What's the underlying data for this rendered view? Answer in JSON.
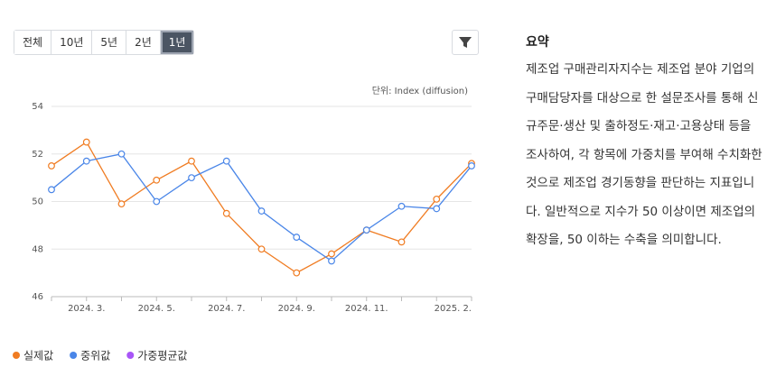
{
  "range_buttons": [
    "전체",
    "10년",
    "5년",
    "2년",
    "1년"
  ],
  "active_button": 4,
  "summary": {
    "title": "요약",
    "text": "제조업 구매관리자지수는 제조업 분야 기업의 구매담당자를 대상으로 한 설문조사를 통해 신규주문·생산 및 출하정도·재고·고용상태 등을 조사하여, 각 항목에 가중치를 부여해 수치화한 것으로 제조업 경기동향을 판단하는 지표입니다. 일반적으로 지수가 50 이상이면 제조업의 확장을, 50 이하는 수축을 의미합니다."
  },
  "chart_data": {
    "type": "line",
    "unit_label": "단위: Index (diffusion)",
    "categories": [
      null,
      "2024. 3.",
      null,
      "2024. 5.",
      null,
      "2024. 7.",
      null,
      "2024. 9.",
      null,
      "2024. 11.",
      null,
      null,
      "2025. 2."
    ],
    "series": [
      {
        "name": "실제값",
        "color": "#f07c22",
        "values": [
          51.5,
          52.5,
          49.9,
          50.9,
          51.7,
          49.5,
          48.0,
          47.0,
          47.8,
          48.8,
          48.3,
          50.1,
          51.6
        ]
      },
      {
        "name": "중위값",
        "color": "#4a86e8",
        "values": [
          50.5,
          51.7,
          52.0,
          50.0,
          51.0,
          51.7,
          49.6,
          48.5,
          47.5,
          48.8,
          49.8,
          49.7,
          51.5
        ]
      },
      {
        "name": "가중평균값",
        "color": "#a855f7",
        "values": [
          null,
          null,
          null,
          null,
          null,
          null,
          null,
          null,
          null,
          null,
          null,
          null,
          null
        ]
      }
    ],
    "ylim": [
      46,
      54
    ],
    "yticks": [
      46,
      48,
      50,
      52,
      54
    ],
    "grid": true
  }
}
